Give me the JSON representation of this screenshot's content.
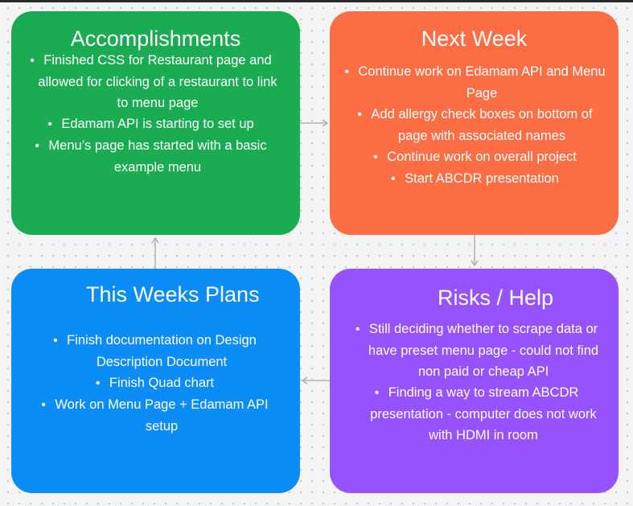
{
  "colors": {
    "accomplishments": "#1bab52",
    "next_week": "#fe6e45",
    "this_weeks_plans": "#0c8cf7",
    "risks_help": "#9552fd",
    "connector": "#b0b0b0"
  },
  "accomplishments": {
    "title": "Accomplishments",
    "items": [
      "Finished CSS for Restaurant page and allowed for clicking of a restaurant to link to menu page",
      "Edamam API is starting to set up",
      "Menu’s page has started with a basic example menu"
    ]
  },
  "next_week": {
    "title": "Next Week",
    "items": [
      "Continue work on Edamam API and Menu Page",
      "Add allergy check boxes on bottom of page with associated names",
      "Continue work on overall project",
      "Start ABCDR presentation"
    ]
  },
  "this_weeks_plans": {
    "title": "This Weeks Plans",
    "items": [
      "Finish documentation on Design Description Document",
      "Finish Quad chart",
      "Work on Menu Page + Edamam API setup"
    ]
  },
  "risks_help": {
    "title": "Risks / Help",
    "items": [
      "Still deciding whether to scrape data or have preset menu page - could not find non paid or cheap API",
      "Finding a way to stream ABCDR presentation - computer does not work with HDMI in room"
    ]
  }
}
